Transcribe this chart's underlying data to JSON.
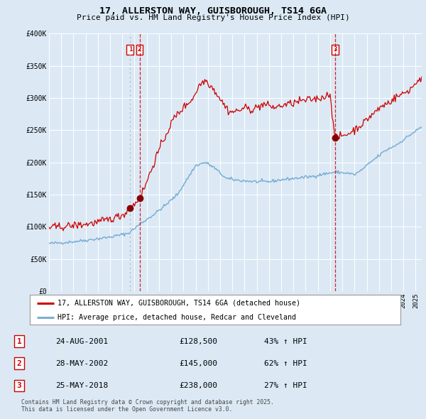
{
  "title_line1": "17, ALLERSTON WAY, GUISBOROUGH, TS14 6GA",
  "title_line2": "Price paid vs. HM Land Registry's House Price Index (HPI)",
  "ylabel_ticks": [
    "£0",
    "£50K",
    "£100K",
    "£150K",
    "£200K",
    "£250K",
    "£300K",
    "£350K",
    "£400K"
  ],
  "ylabel_values": [
    0,
    50000,
    100000,
    150000,
    200000,
    250000,
    300000,
    350000,
    400000
  ],
  "ylim": [
    0,
    400000
  ],
  "xlim_start": 1995.0,
  "xlim_end": 2025.5,
  "sale1_date": 2001.646,
  "sale1_price": 128500,
  "sale1_label": "1",
  "sale2_date": 2002.41,
  "sale2_price": 145000,
  "sale2_label": "2",
  "sale3_date": 2018.4,
  "sale3_price": 238000,
  "sale3_label": "3",
  "legend_line1": "17, ALLERSTON WAY, GUISBOROUGH, TS14 6GA (detached house)",
  "legend_line2": "HPI: Average price, detached house, Redcar and Cleveland",
  "table_data": [
    {
      "num": "1",
      "date": "24-AUG-2001",
      "price": "£128,500",
      "change": "43% ↑ HPI"
    },
    {
      "num": "2",
      "date": "28-MAY-2002",
      "price": "£145,000",
      "change": "62% ↑ HPI"
    },
    {
      "num": "3",
      "date": "25-MAY-2018",
      "price": "£238,000",
      "change": "27% ↑ HPI"
    }
  ],
  "footnote": "Contains HM Land Registry data © Crown copyright and database right 2025.\nThis data is licensed under the Open Government Licence v3.0.",
  "bg_color": "#dce9f5",
  "grid_color": "#ffffff",
  "red_line_color": "#cc0000",
  "blue_line_color": "#7bafd4",
  "dot_color": "#880000",
  "vline1_color": "#aabbd4",
  "vline2_color": "#cc0000",
  "vline3_color": "#cc0000"
}
